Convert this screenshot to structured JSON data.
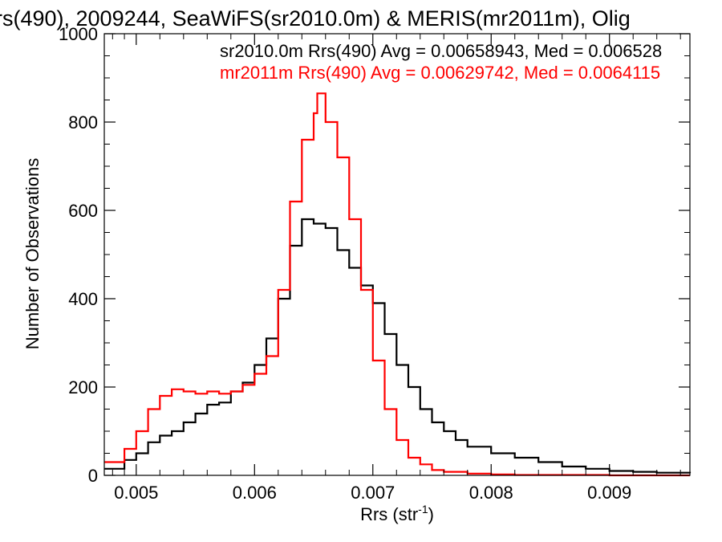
{
  "chart_data": {
    "type": "line",
    "title": "rs(490), 2009244, SeaWiFS(sr2010.0m) & MERIS(mr2011m), Olig",
    "xlabel": "Rrs (str",
    "xlabel_sup": "-1",
    "xlabel_close": ")",
    "ylabel": "Number of Observations",
    "xlim": [
      0.00473,
      0.00968
    ],
    "ylim": [
      0,
      1000
    ],
    "x_ticks": [
      0.005,
      0.006,
      0.007,
      0.008,
      0.009
    ],
    "x_tick_labels": [
      "0.005",
      "0.006",
      "0.007",
      "0.008",
      "0.009"
    ],
    "y_ticks": [
      0,
      200,
      400,
      600,
      800,
      1000
    ],
    "y_tick_labels": [
      "0",
      "200",
      "400",
      "600",
      "800",
      "1000"
    ],
    "legend": [
      {
        "text": "sr2010.0m Rrs(490) Avg = 0.00658943, Med = 0.006528",
        "color": "#000000"
      },
      {
        "text": "mr2011m Rrs(490) Avg = 0.00629742, Med = 0.0064115",
        "color": "#ff0000"
      }
    ],
    "series": [
      {
        "color": "#000000",
        "points": [
          [
            0.00473,
            15
          ],
          [
            0.0049,
            35
          ],
          [
            0.005,
            50
          ],
          [
            0.0051,
            75
          ],
          [
            0.0052,
            90
          ],
          [
            0.0053,
            100
          ],
          [
            0.0054,
            120
          ],
          [
            0.0055,
            140
          ],
          [
            0.0056,
            160
          ],
          [
            0.0057,
            165
          ],
          [
            0.0058,
            190
          ],
          [
            0.0059,
            210
          ],
          [
            0.006,
            250
          ],
          [
            0.0061,
            310
          ],
          [
            0.0062,
            400
          ],
          [
            0.0063,
            520
          ],
          [
            0.0064,
            580
          ],
          [
            0.00645,
            580
          ],
          [
            0.0065,
            570
          ],
          [
            0.0066,
            560
          ],
          [
            0.0067,
            510
          ],
          [
            0.0068,
            470
          ],
          [
            0.0069,
            430
          ],
          [
            0.007,
            390
          ],
          [
            0.0071,
            320
          ],
          [
            0.0072,
            250
          ],
          [
            0.0073,
            200
          ],
          [
            0.0074,
            150
          ],
          [
            0.0075,
            120
          ],
          [
            0.0076,
            100
          ],
          [
            0.0077,
            80
          ],
          [
            0.0078,
            65
          ],
          [
            0.008,
            50
          ],
          [
            0.0082,
            40
          ],
          [
            0.0084,
            30
          ],
          [
            0.0086,
            20
          ],
          [
            0.0088,
            15
          ],
          [
            0.009,
            10
          ],
          [
            0.0092,
            8
          ],
          [
            0.0094,
            6
          ],
          [
            0.00968,
            5
          ]
        ]
      },
      {
        "color": "#ff0000",
        "points": [
          [
            0.00473,
            30
          ],
          [
            0.0049,
            60
          ],
          [
            0.005,
            100
          ],
          [
            0.0051,
            150
          ],
          [
            0.0052,
            180
          ],
          [
            0.0053,
            195
          ],
          [
            0.0054,
            190
          ],
          [
            0.0055,
            185
          ],
          [
            0.0056,
            190
          ],
          [
            0.0057,
            185
          ],
          [
            0.0058,
            190
          ],
          [
            0.0059,
            205
          ],
          [
            0.006,
            230
          ],
          [
            0.0061,
            270
          ],
          [
            0.0062,
            420
          ],
          [
            0.0063,
            620
          ],
          [
            0.0064,
            760
          ],
          [
            0.0065,
            820
          ],
          [
            0.00653,
            865
          ],
          [
            0.0066,
            800
          ],
          [
            0.0067,
            720
          ],
          [
            0.0068,
            580
          ],
          [
            0.0069,
            420
          ],
          [
            0.007,
            260
          ],
          [
            0.0071,
            150
          ],
          [
            0.0072,
            80
          ],
          [
            0.0073,
            40
          ],
          [
            0.0074,
            25
          ],
          [
            0.0075,
            12
          ],
          [
            0.0076,
            8
          ],
          [
            0.0078,
            4
          ],
          [
            0.008,
            2
          ],
          [
            0.0082,
            1
          ],
          [
            0.0085,
            1
          ],
          [
            0.009,
            0
          ],
          [
            0.00968,
            0
          ]
        ]
      }
    ]
  }
}
